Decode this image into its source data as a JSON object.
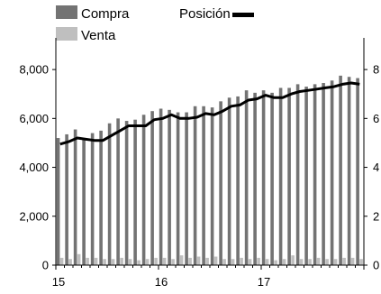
{
  "chart_data": {
    "type": "bar",
    "title": "",
    "xlabel": "",
    "ylabel": "",
    "x": [
      "15",
      "",
      "",
      "",
      "",
      "",
      "",
      "",
      "",
      "",
      "",
      "",
      "16",
      "",
      "",
      "",
      "",
      "",
      "",
      "",
      "",
      "",
      "",
      "",
      "17",
      "",
      "",
      "",
      "",
      "",
      "",
      "",
      "",
      "",
      "",
      ""
    ],
    "x_tick_labels": [
      "15",
      "16",
      "17"
    ],
    "ylim": [
      0,
      9000
    ],
    "y_ticks": [
      0,
      2000,
      4000,
      6000,
      8000
    ],
    "y_tick_labels": [
      "0",
      "2,000",
      "4,000",
      "6,000",
      "8,000"
    ],
    "y2lim": [
      0,
      9
    ],
    "y2_ticks": [
      0,
      2,
      4,
      6,
      8
    ],
    "y2_tick_labels": [
      "0",
      "2",
      "4",
      "6",
      "8"
    ],
    "grid": false,
    "series": [
      {
        "name": "Compra",
        "type": "bar",
        "axis": "left",
        "color": "#737373",
        "values": [
          5200,
          5350,
          5550,
          5200,
          5400,
          5500,
          5800,
          6000,
          5900,
          5950,
          6150,
          6300,
          6400,
          6350,
          6250,
          6250,
          6500,
          6500,
          6450,
          6700,
          6850,
          6900,
          7150,
          7050,
          7150,
          7050,
          7250,
          7250,
          7400,
          7300,
          7400,
          7450,
          7550,
          7750,
          7700,
          7650
        ]
      },
      {
        "name": "Venta",
        "type": "bar",
        "axis": "left",
        "color": "#bfbfbf",
        "values": [
          300,
          250,
          450,
          300,
          300,
          250,
          250,
          300,
          250,
          200,
          250,
          300,
          300,
          250,
          400,
          300,
          350,
          300,
          350,
          250,
          250,
          300,
          250,
          300,
          250,
          200,
          250,
          400,
          250,
          250,
          300,
          250,
          250,
          300,
          300,
          250
        ]
      },
      {
        "name": "Posición",
        "type": "line",
        "axis": "right",
        "color": "#000000",
        "values": [
          4.95,
          5.05,
          5.2,
          5.15,
          5.1,
          5.1,
          5.3,
          5.5,
          5.7,
          5.7,
          5.7,
          5.95,
          6.0,
          6.15,
          6.0,
          6.0,
          6.05,
          6.2,
          6.15,
          6.3,
          6.5,
          6.55,
          6.75,
          6.8,
          6.95,
          6.85,
          6.85,
          7.0,
          7.1,
          7.15,
          7.2,
          7.25,
          7.3,
          7.4,
          7.45,
          7.4
        ]
      }
    ],
    "legend": [
      {
        "label": "Compra",
        "kind": "swatch",
        "color": "#737373"
      },
      {
        "label": "Posición",
        "kind": "line",
        "color": "#000000"
      },
      {
        "label": "Venta",
        "kind": "swatch",
        "color": "#bfbfbf"
      }
    ],
    "legend_position": "top"
  }
}
